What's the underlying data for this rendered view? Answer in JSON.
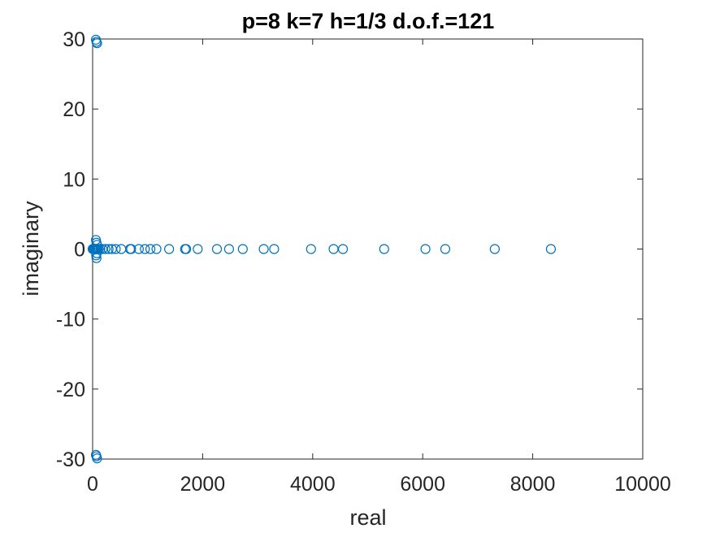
{
  "chart_data": {
    "type": "scatter",
    "title": "p=8 k=7 h=1/3 d.o.f.=121",
    "xlabel": "real",
    "ylabel": "imaginary",
    "xlim": [
      0,
      10000
    ],
    "ylim": [
      -30,
      30
    ],
    "xticks": [
      "0",
      "2000",
      "4000",
      "6000",
      "8000",
      "10000"
    ],
    "yticks": [
      "-30",
      "-20",
      "-10",
      "0",
      "10",
      "20",
      "30"
    ],
    "marker": "circle",
    "marker_color": "#0072BD",
    "grid": false,
    "points": [
      [
        60,
        29.9
      ],
      [
        70,
        29.6
      ],
      [
        80,
        29.4
      ],
      [
        60,
        -29.4
      ],
      [
        70,
        -29.6
      ],
      [
        80,
        -29.9
      ],
      [
        60,
        1.3
      ],
      [
        70,
        0.9
      ],
      [
        80,
        0.6
      ],
      [
        75,
        -0.6
      ],
      [
        65,
        -0.9
      ],
      [
        70,
        -1.3
      ],
      [
        0,
        0
      ],
      [
        15,
        0
      ],
      [
        30,
        0
      ],
      [
        45,
        0
      ],
      [
        60,
        0
      ],
      [
        75,
        0
      ],
      [
        90,
        0
      ],
      [
        110,
        0
      ],
      [
        140,
        0
      ],
      [
        180,
        0
      ],
      [
        230,
        0
      ],
      [
        290,
        0
      ],
      [
        350,
        0
      ],
      [
        420,
        0
      ],
      [
        520,
        0
      ],
      [
        680,
        0
      ],
      [
        700,
        0
      ],
      [
        840,
        0
      ],
      [
        950,
        0
      ],
      [
        1050,
        0
      ],
      [
        1160,
        0
      ],
      [
        1390,
        0
      ],
      [
        1680,
        0
      ],
      [
        1700,
        0
      ],
      [
        1910,
        0
      ],
      [
        2260,
        0
      ],
      [
        2480,
        0
      ],
      [
        2730,
        0
      ],
      [
        3110,
        0
      ],
      [
        3300,
        0
      ],
      [
        3970,
        0
      ],
      [
        4380,
        0
      ],
      [
        4550,
        0
      ],
      [
        5300,
        0
      ],
      [
        6050,
        0
      ],
      [
        6410,
        0
      ],
      [
        7310,
        0
      ],
      [
        8330,
        0
      ]
    ]
  }
}
